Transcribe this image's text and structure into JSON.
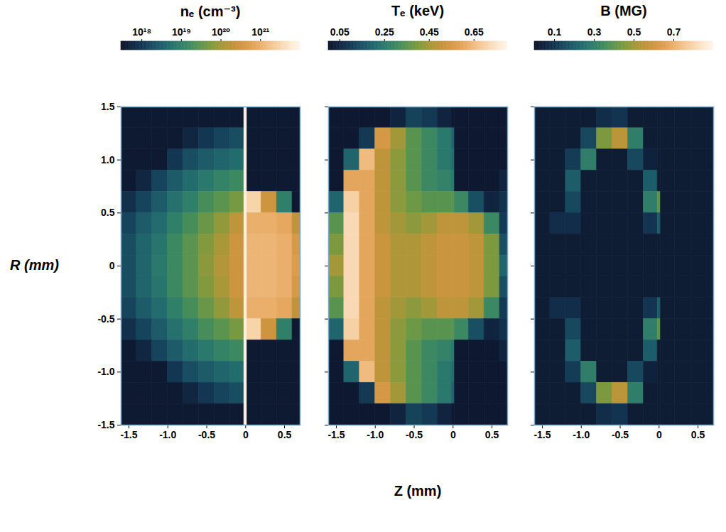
{
  "chart_data": [
    {
      "type": "heatmap",
      "title": "nₑ (cm⁻³)",
      "ylabel": "R (mm)",
      "xlim": [
        -1.6,
        0.7
      ],
      "ylim": [
        -1.5,
        1.5
      ],
      "xticks": [
        -1.5,
        {
          "value": -1,
          "label": "-1.0"
        },
        -0.5,
        0,
        0.5
      ],
      "yticks": [
        1.5,
        {
          "value": 1,
          "label": "1.0"
        },
        0.5,
        0,
        -0.5,
        {
          "value": -1,
          "label": "-1.0"
        },
        -1.5
      ],
      "x_edges": [
        -1.6,
        -1.4,
        -1.2,
        -1.0,
        -0.8,
        -0.6,
        -0.4,
        -0.2,
        -0.02,
        0.02,
        0.2,
        0.4,
        0.6,
        0.7
      ],
      "y_edges": [
        1.5,
        1.3,
        1.1,
        0.9,
        0.7,
        0.5,
        0.3,
        0.1,
        -0.1,
        -0.3,
        -0.5,
        -0.7,
        -0.9,
        -1.1,
        -1.3,
        -1.5
      ],
      "cells": [
        [
          4e+17,
          4e+17,
          4e+17,
          4e+17,
          4e+17,
          4e+17,
          4e+17,
          4e+17,
          8e+21,
          4e+17,
          4e+17,
          4e+17,
          4e+17
        ],
        [
          4e+17,
          4e+17,
          4e+17,
          4e+17,
          6e+17,
          1e+18,
          1.5e+18,
          2e+18,
          8e+21,
          4e+17,
          4e+17,
          4e+17,
          4e+17
        ],
        [
          4e+17,
          4e+17,
          4e+17,
          1e+18,
          2e+18,
          3e+18,
          4e+18,
          5e+18,
          8e+21,
          4e+17,
          4e+17,
          4e+17,
          4e+17
        ],
        [
          4e+17,
          6e+17,
          1.5e+18,
          3e+18,
          5e+18,
          8e+18,
          1.2e+19,
          1.5e+19,
          8e+21,
          4e+17,
          4e+17,
          4e+17,
          4e+17
        ],
        [
          8e+17,
          1.5e+18,
          3e+18,
          6e+18,
          1e+19,
          2e+19,
          3e+19,
          5e+19,
          8e+21,
          3e+21,
          3e+20,
          1e+19,
          4e+17
        ],
        [
          1.5e+18,
          3e+18,
          5e+18,
          1e+19,
          2e+19,
          4e+19,
          8e+19,
          2e+20,
          8e+21,
          1e+21,
          1e+21,
          8e+20,
          2e+20
        ],
        [
          2e+18,
          4e+18,
          7e+18,
          1.5e+19,
          3e+19,
          6e+19,
          1.2e+20,
          3e+20,
          8e+21,
          1.2e+21,
          1.2e+21,
          1e+21,
          4e+20
        ],
        [
          2e+18,
          4e+18,
          8e+18,
          1.5e+19,
          3e+19,
          7e+19,
          1.5e+20,
          3e+20,
          8e+21,
          1.2e+21,
          1.2e+21,
          1e+21,
          5e+20
        ],
        [
          2e+18,
          4e+18,
          7e+18,
          1.5e+19,
          3e+19,
          6e+19,
          1.2e+20,
          3e+20,
          8e+21,
          1.2e+21,
          1.2e+21,
          1e+21,
          4e+20
        ],
        [
          1.5e+18,
          3e+18,
          5e+18,
          1e+19,
          2e+19,
          4e+19,
          8e+19,
          2e+20,
          8e+21,
          1e+21,
          1e+21,
          8e+20,
          2e+20
        ],
        [
          8e+17,
          1.5e+18,
          3e+18,
          6e+18,
          1e+19,
          2e+19,
          3e+19,
          5e+19,
          8e+21,
          3e+21,
          3e+20,
          1e+19,
          4e+17
        ],
        [
          4e+17,
          6e+17,
          1.5e+18,
          3e+18,
          5e+18,
          8e+18,
          1.2e+19,
          1.5e+19,
          8e+21,
          4e+17,
          4e+17,
          4e+17,
          4e+17
        ],
        [
          4e+17,
          4e+17,
          4e+17,
          1e+18,
          2e+18,
          3e+18,
          4e+18,
          5e+18,
          8e+21,
          4e+17,
          4e+17,
          4e+17,
          4e+17
        ],
        [
          4e+17,
          4e+17,
          4e+17,
          4e+17,
          6e+17,
          1e+18,
          1.5e+18,
          2e+18,
          8e+21,
          4e+17,
          4e+17,
          4e+17,
          4e+17
        ],
        [
          4e+17,
          4e+17,
          4e+17,
          4e+17,
          4e+17,
          4e+17,
          4e+17,
          4e+17,
          8e+21,
          4e+17,
          4e+17,
          4e+17,
          4e+17
        ]
      ],
      "colorbar": {
        "range": [
          3e+17,
          1e+22
        ],
        "log": true,
        "ticks": [
          {
            "value": 1e+18,
            "label": "10¹⁸"
          },
          {
            "value": 1e+19,
            "label": "10¹⁹"
          },
          {
            "value": 1e+20,
            "label": "10²⁰"
          },
          {
            "value": 1e+21,
            "label": "10²¹"
          }
        ]
      }
    },
    {
      "type": "heatmap",
      "title": "Tₑ (keV)",
      "xlabel": "Z (mm)",
      "tick_labels": "x",
      "xlim": [
        -1.6,
        0.7
      ],
      "ylim": [
        -1.5,
        1.5
      ],
      "xticks": [
        -1.5,
        {
          "value": -1,
          "label": "-1.0"
        },
        -0.5,
        0,
        0.5
      ],
      "yticks": [
        1.5,
        1,
        0.5,
        0,
        -0.5,
        -1,
        -1.5
      ],
      "x_edges": [
        -1.6,
        -1.4,
        -1.2,
        -1.0,
        -0.8,
        -0.6,
        -0.4,
        -0.2,
        -0.02,
        0.02,
        0.2,
        0.4,
        0.6,
        0.7
      ],
      "y_edges": [
        1.5,
        1.3,
        1.1,
        0.9,
        0.7,
        0.5,
        0.3,
        0.1,
        -0.1,
        -0.3,
        -0.5,
        -0.7,
        -0.9,
        -1.1,
        -1.3,
        -1.5
      ],
      "cells": [
        [
          0.02,
          0.02,
          0.02,
          0.02,
          0.05,
          0.12,
          0.1,
          0.05,
          0.02,
          0.02,
          0.02,
          0.02,
          0.02
        ],
        [
          0.02,
          0.02,
          0.1,
          0.55,
          0.45,
          0.35,
          0.3,
          0.25,
          0.2,
          0.02,
          0.02,
          0.02,
          0.02
        ],
        [
          0.02,
          0.2,
          0.65,
          0.5,
          0.42,
          0.35,
          0.3,
          0.25,
          0.22,
          0.02,
          0.02,
          0.02,
          0.02
        ],
        [
          0.02,
          0.6,
          0.6,
          0.5,
          0.42,
          0.35,
          0.3,
          0.28,
          0.25,
          0.02,
          0.02,
          0.02,
          0.05
        ],
        [
          0.2,
          0.7,
          0.6,
          0.5,
          0.42,
          0.38,
          0.35,
          0.35,
          0.35,
          0.3,
          0.15,
          0.05,
          0.08
        ],
        [
          0.35,
          0.72,
          0.6,
          0.5,
          0.45,
          0.42,
          0.45,
          0.5,
          0.5,
          0.5,
          0.45,
          0.3,
          0.1
        ],
        [
          0.4,
          0.72,
          0.6,
          0.52,
          0.47,
          0.47,
          0.5,
          0.52,
          0.52,
          0.52,
          0.5,
          0.4,
          0.15
        ],
        [
          0.45,
          0.72,
          0.6,
          0.52,
          0.47,
          0.47,
          0.5,
          0.52,
          0.52,
          0.52,
          0.5,
          0.4,
          0.2
        ],
        [
          0.4,
          0.72,
          0.6,
          0.52,
          0.47,
          0.47,
          0.5,
          0.52,
          0.52,
          0.52,
          0.5,
          0.4,
          0.15
        ],
        [
          0.35,
          0.72,
          0.6,
          0.5,
          0.45,
          0.42,
          0.45,
          0.5,
          0.5,
          0.5,
          0.45,
          0.3,
          0.1
        ],
        [
          0.2,
          0.7,
          0.6,
          0.5,
          0.42,
          0.38,
          0.35,
          0.35,
          0.35,
          0.3,
          0.15,
          0.05,
          0.08
        ],
        [
          0.02,
          0.6,
          0.6,
          0.5,
          0.42,
          0.35,
          0.3,
          0.28,
          0.25,
          0.02,
          0.02,
          0.02,
          0.05
        ],
        [
          0.02,
          0.2,
          0.65,
          0.5,
          0.42,
          0.35,
          0.3,
          0.25,
          0.22,
          0.02,
          0.02,
          0.02,
          0.02
        ],
        [
          0.02,
          0.02,
          0.1,
          0.55,
          0.45,
          0.35,
          0.3,
          0.25,
          0.2,
          0.02,
          0.02,
          0.02,
          0.02
        ],
        [
          0.02,
          0.02,
          0.02,
          0.02,
          0.05,
          0.12,
          0.1,
          0.05,
          0.02,
          0.02,
          0.02,
          0.02,
          0.02
        ]
      ],
      "colorbar": {
        "range": [
          0,
          0.8
        ],
        "ticks": [
          0.05,
          0.25,
          0.45,
          0.65
        ]
      }
    },
    {
      "type": "heatmap",
      "title": "B (MG)",
      "tick_labels": "x",
      "xlim": [
        -1.6,
        0.7
      ],
      "ylim": [
        -1.5,
        1.5
      ],
      "xticks": [
        -1.5,
        {
          "value": -1,
          "label": "-1.0"
        },
        -0.5,
        0,
        0.5
      ],
      "yticks": [
        1.5,
        1,
        0.5,
        0,
        -0.5,
        -1,
        -1.5
      ],
      "x_edges": [
        -1.6,
        -1.4,
        -1.2,
        -1.0,
        -0.8,
        -0.6,
        -0.4,
        -0.2,
        -0.02,
        0.02,
        0.2,
        0.4,
        0.6,
        0.7
      ],
      "y_edges": [
        1.5,
        1.3,
        1.1,
        0.9,
        0.7,
        0.5,
        0.3,
        0.1,
        -0.1,
        -0.3,
        -0.5,
        -0.7,
        -0.9,
        -1.1,
        -1.3,
        -1.5
      ],
      "cells": [
        [
          0.03,
          0.03,
          0.03,
          0.03,
          0.08,
          0.1,
          0.03,
          0.03,
          0.03,
          0.03,
          0.03,
          0.03,
          0.03
        ],
        [
          0.03,
          0.03,
          0.03,
          0.15,
          0.45,
          0.55,
          0.3,
          0.03,
          0.03,
          0.03,
          0.03,
          0.03,
          0.03
        ],
        [
          0.03,
          0.03,
          0.12,
          0.3,
          0.03,
          0.03,
          0.15,
          0.05,
          0.03,
          0.03,
          0.03,
          0.03,
          0.03
        ],
        [
          0.03,
          0.03,
          0.2,
          0.03,
          0.03,
          0.03,
          0.03,
          0.2,
          0.03,
          0.03,
          0.03,
          0.03,
          0.03
        ],
        [
          0.03,
          0.03,
          0.15,
          0.03,
          0.03,
          0.03,
          0.03,
          0.3,
          0.4,
          0.03,
          0.03,
          0.03,
          0.03
        ],
        [
          0.03,
          0.08,
          0.08,
          0.03,
          0.03,
          0.03,
          0.03,
          0.1,
          0.2,
          0.03,
          0.03,
          0.03,
          0.03
        ],
        [
          0.03,
          0.03,
          0.03,
          0.03,
          0.03,
          0.03,
          0.03,
          0.03,
          0.03,
          0.03,
          0.03,
          0.03,
          0.03
        ],
        [
          0.03,
          0.03,
          0.03,
          0.03,
          0.03,
          0.03,
          0.03,
          0.03,
          0.03,
          0.03,
          0.03,
          0.03,
          0.03
        ],
        [
          0.03,
          0.03,
          0.03,
          0.03,
          0.03,
          0.03,
          0.03,
          0.03,
          0.03,
          0.03,
          0.03,
          0.03,
          0.03
        ],
        [
          0.03,
          0.08,
          0.08,
          0.03,
          0.03,
          0.03,
          0.03,
          0.1,
          0.2,
          0.03,
          0.03,
          0.03,
          0.03
        ],
        [
          0.03,
          0.03,
          0.15,
          0.03,
          0.03,
          0.03,
          0.03,
          0.3,
          0.4,
          0.03,
          0.03,
          0.03,
          0.03
        ],
        [
          0.03,
          0.03,
          0.2,
          0.03,
          0.03,
          0.03,
          0.03,
          0.2,
          0.03,
          0.03,
          0.03,
          0.03,
          0.03
        ],
        [
          0.03,
          0.03,
          0.12,
          0.3,
          0.03,
          0.03,
          0.15,
          0.05,
          0.03,
          0.03,
          0.03,
          0.03,
          0.03
        ],
        [
          0.03,
          0.03,
          0.03,
          0.15,
          0.45,
          0.55,
          0.3,
          0.03,
          0.03,
          0.03,
          0.03,
          0.03,
          0.03
        ],
        [
          0.03,
          0.03,
          0.03,
          0.03,
          0.08,
          0.1,
          0.03,
          0.03,
          0.03,
          0.03,
          0.03,
          0.03,
          0.03
        ]
      ],
      "colorbar": {
        "range": [
          0,
          0.9
        ],
        "ticks": [
          0.1,
          0.3,
          0.5,
          0.7
        ]
      }
    }
  ]
}
